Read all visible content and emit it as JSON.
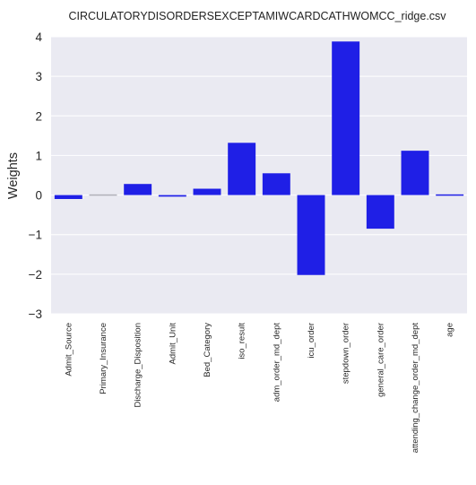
{
  "chart_data": {
    "type": "bar",
    "title": "CIRCULATORYDISORDERSEXCEPTAMIWCARDCATHWOMCC_ridge.csv",
    "xlabel": "",
    "ylabel": "Weights",
    "ylim": [
      -3,
      4
    ],
    "yticks": [
      "−3",
      "−2",
      "−1",
      "0",
      "1",
      "2",
      "3",
      "4"
    ],
    "grid": true,
    "background": "#eaeaf2",
    "bar_color": "#1f1fe6",
    "small_bar_color": "#b0b0b8",
    "categories": [
      "Admit_Source",
      "Primary_Insurance",
      "Discharge_Disposition",
      "Admit_Unit",
      "Bed_Category",
      "iso_result",
      "adm_order_md_dept",
      "icu_order",
      "stepdown_order",
      "general_care_order",
      "attending_change_order_md_dept",
      "age"
    ],
    "values": [
      -0.1,
      0.01,
      0.28,
      -0.04,
      0.16,
      1.32,
      0.55,
      -2.02,
      3.88,
      -0.85,
      1.12,
      0.03
    ]
  }
}
